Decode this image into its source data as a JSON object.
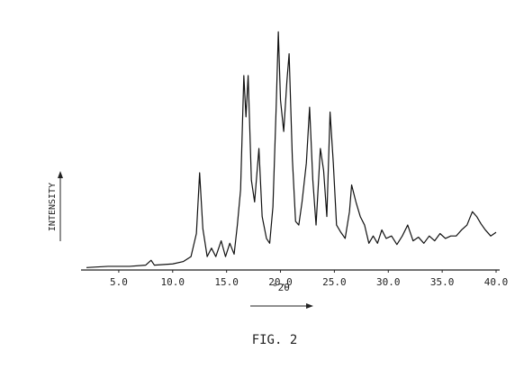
{
  "chart_data": {
    "type": "line",
    "xlabel": "°2θ",
    "ylabel": "INTENSITY",
    "caption": "FIG. 2",
    "xlim": [
      2,
      40
    ],
    "ylim": [
      0,
      100
    ],
    "xticks": [
      {
        "value": 5,
        "label": "5.0"
      },
      {
        "value": 10,
        "label": "10.0"
      },
      {
        "value": 15,
        "label": "15.0"
      },
      {
        "value": 20,
        "label": "20.0"
      },
      {
        "value": 25,
        "label": "25.0"
      },
      {
        "value": 30,
        "label": "30.0"
      },
      {
        "value": 35,
        "label": "35.0"
      },
      {
        "value": 40,
        "label": "40.0"
      }
    ],
    "color": "#111111",
    "x": [
      2.0,
      4,
      6,
      7.5,
      8.0,
      8.3,
      10,
      11,
      11.7,
      12.2,
      12.5,
      12.8,
      13.2,
      13.6,
      14.0,
      14.5,
      14.9,
      15.3,
      15.7,
      16.0,
      16.3,
      16.6,
      16.8,
      17.0,
      17.3,
      17.6,
      18.0,
      18.3,
      18.7,
      19.0,
      19.3,
      19.6,
      19.8,
      20.0,
      20.3,
      20.6,
      20.8,
      21.1,
      21.4,
      21.7,
      22.0,
      22.4,
      22.7,
      23.0,
      23.3,
      23.7,
      24.0,
      24.3,
      24.6,
      24.9,
      25.2,
      25.6,
      26.0,
      26.4,
      26.6,
      27.0,
      27.4,
      27.8,
      28.2,
      28.6,
      29.0,
      29.4,
      29.8,
      30.3,
      30.8,
      31.3,
      31.8,
      32.3,
      32.8,
      33.3,
      33.8,
      34.3,
      34.8,
      35.3,
      35.8,
      36.3,
      36.8,
      37.3,
      37.8,
      38.2,
      38.6,
      39.0,
      39.5,
      40.0
    ],
    "values": [
      1,
      1.5,
      1.5,
      2,
      4,
      2,
      2.5,
      3.5,
      5.5,
      15,
      40,
      17,
      5.5,
      9,
      5.5,
      12,
      5.5,
      11,
      6.5,
      18.5,
      33,
      80,
      63,
      80,
      37,
      28,
      50,
      22,
      13,
      11,
      26,
      67,
      98,
      70,
      57,
      78,
      89,
      46,
      20,
      18.5,
      28,
      44,
      67,
      37,
      18.5,
      50,
      41,
      22,
      65,
      44,
      18.5,
      15.5,
      13,
      24,
      35,
      28,
      22,
      18.5,
      11,
      14,
      11,
      16.5,
      13,
      14,
      10.5,
      14,
      18.5,
      12,
      13.5,
      11,
      14,
      12,
      15,
      13,
      14,
      14,
      16.5,
      18.5,
      24,
      22,
      19,
      16.5,
      14,
      15.5
    ]
  }
}
